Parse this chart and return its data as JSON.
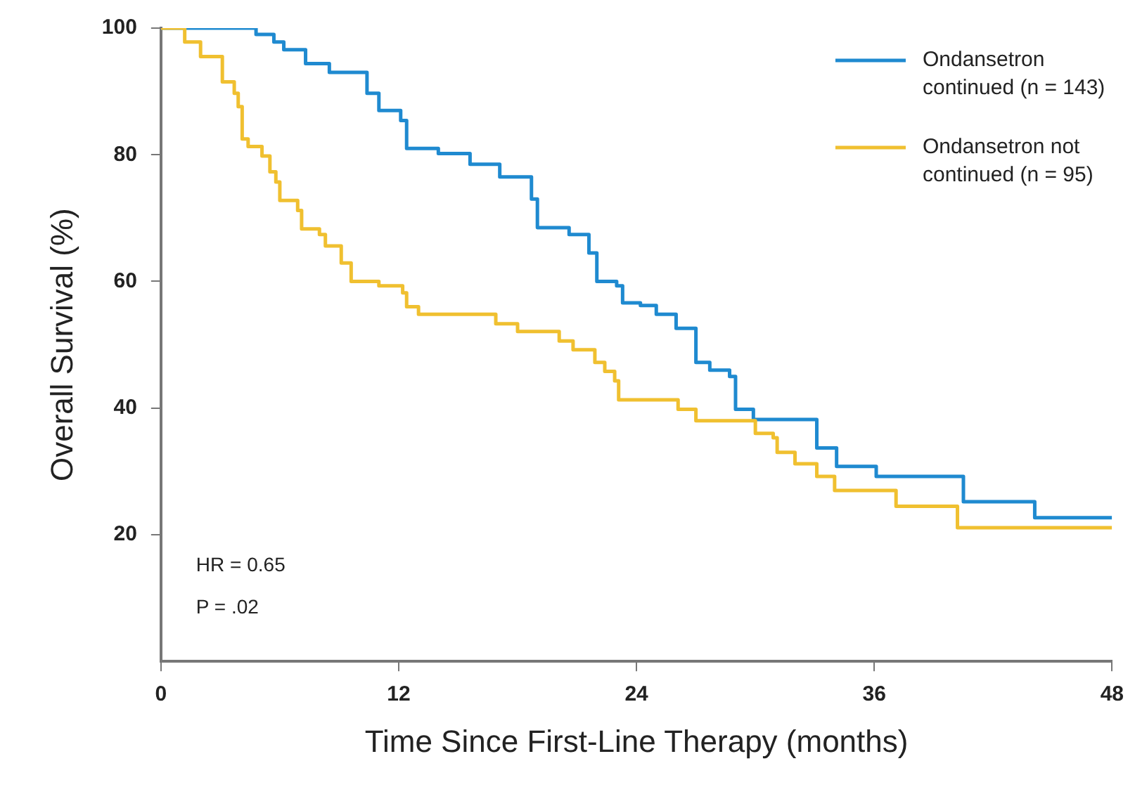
{
  "chart_data": {
    "type": "step",
    "xlabel": "Time Since First-Line Therapy (months)",
    "ylabel": "Overall Survival (%)",
    "xlim": [
      0,
      48
    ],
    "xticks": [
      0,
      12,
      24,
      36,
      48
    ],
    "ylim": [
      0,
      100
    ],
    "yticks": [
      20,
      40,
      60,
      80,
      100
    ],
    "grid": false,
    "legend": "top right",
    "marker": "none",
    "line_style": "solid",
    "annotations": [
      "HR = 0.65",
      "P = .02"
    ],
    "series": [
      {
        "name": "Ondansetron continued (n = 143)",
        "color": "#1f8ad0",
        "x": [
          0,
          4.8,
          5.7,
          6.2,
          7.3,
          8.5,
          10.4,
          11.0,
          12.1,
          12.4,
          14.0,
          15.6,
          17.1,
          18.7,
          19.0,
          20.6,
          21.6,
          22.0,
          23.0,
          23.3,
          24.2,
          25.0,
          26.0,
          27.0,
          27.7,
          28.7,
          29.0,
          29.9,
          33.1,
          34.1,
          36.1,
          40.5,
          44.1,
          48
        ],
        "values": [
          100,
          99,
          97.8,
          96.6,
          94.4,
          93,
          89.7,
          87,
          85.4,
          81,
          80.2,
          78.5,
          76.5,
          73,
          68.5,
          67.4,
          64.5,
          60,
          59.3,
          56.6,
          56.2,
          54.8,
          52.6,
          47.2,
          46,
          45,
          39.8,
          38.2,
          33.7,
          30.8,
          29.2,
          25.2,
          22.7,
          22.7
        ]
      },
      {
        "name": "Ondansetron not continued (n = 95)",
        "color": "#f0c030",
        "x": [
          0,
          1.2,
          2.0,
          3.1,
          3.7,
          3.9,
          4.1,
          4.4,
          5.1,
          5.5,
          5.8,
          6.0,
          6.9,
          7.1,
          8.0,
          8.3,
          9.1,
          9.6,
          11.0,
          12.2,
          12.4,
          13.0,
          16.9,
          18.0,
          20.1,
          20.8,
          21.9,
          22.4,
          22.9,
          23.1,
          26.1,
          27.0,
          30.0,
          30.9,
          31.1,
          32.0,
          33.1,
          34.0,
          37.1,
          40.2,
          48
        ],
        "values": [
          100,
          97.8,
          95.5,
          91.5,
          89.7,
          87.6,
          82.5,
          81.3,
          79.8,
          77.3,
          75.7,
          72.8,
          71.2,
          68.3,
          67.4,
          65.6,
          62.9,
          60,
          59.3,
          58.2,
          56,
          54.8,
          53.3,
          52.1,
          50.6,
          49.2,
          47.2,
          45.8,
          44.3,
          41.3,
          39.8,
          38,
          36,
          35.3,
          33,
          31.2,
          29.2,
          27,
          24.5,
          21.1,
          21.1
        ]
      }
    ]
  }
}
